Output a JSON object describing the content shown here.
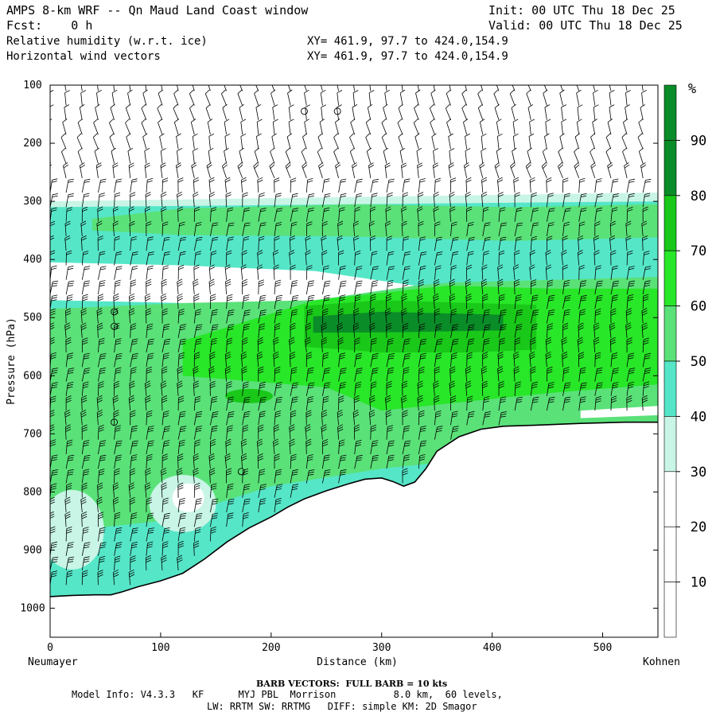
{
  "header": {
    "title": "AMPS 8-km WRF -- Qn Maud Land Coast window",
    "init": "Init: 00 UTC Thu 18 Dec 25",
    "fcst": "Fcst:    0 h",
    "valid": "Valid: 00 UTC Thu 18 Dec 25",
    "field1": "Relative humidity (w.r.t. ice)",
    "field2": "Horizontal wind vectors",
    "xy1": "XY= 461.9, 97.7 to 424.0,154.9",
    "xy2": "XY= 461.9, 97.7 to 424.0,154.9"
  },
  "footer": {
    "barb_note": "BARB VECTORS:  FULL BARB = 10 kts",
    "model_line1": "Model Info: V4.3.3   KF      MYJ PBL  Morrison          8.0 km,  60 levels,",
    "model_line2": "LW: RRTM SW: RRTMG   DIFF: simple KM: 2D Smagor"
  },
  "chart_data": {
    "type": "heatmap",
    "title": "Relative humidity (w.r.t. ice)",
    "xlabel": "Distance (km)",
    "ylabel": "Pressure (hPa)",
    "x_left_label": "Neumayer",
    "x_right_label": "Kohnen",
    "x_ticks": [
      0,
      100,
      200,
      300,
      400,
      500
    ],
    "x_range": [
      0,
      550
    ],
    "y_ticks": [
      100,
      200,
      300,
      400,
      500,
      600,
      700,
      800,
      900,
      1000
    ],
    "y_range": [
      100,
      1050
    ],
    "colorbar": {
      "unit": "%",
      "levels": [
        10,
        20,
        30,
        40,
        50,
        60,
        70,
        80,
        90
      ],
      "colors": [
        "#ffffff",
        "#ffffff",
        "#ffffff",
        "#c8f5e6",
        "#55e6c8",
        "#5ae178",
        "#28e628",
        "#19c819",
        "#0a8c28"
      ]
    },
    "terrain": {
      "x_km": [
        0,
        20,
        40,
        55,
        65,
        80,
        100,
        120,
        140,
        160,
        180,
        200,
        215,
        230,
        250,
        270,
        285,
        300,
        310,
        320,
        330,
        340,
        350,
        370,
        390,
        410,
        440,
        480,
        520,
        550
      ],
      "p_hpa": [
        980,
        978,
        977,
        977,
        972,
        963,
        953,
        940,
        915,
        886,
        862,
        843,
        826,
        812,
        798,
        786,
        778,
        776,
        782,
        790,
        783,
        760,
        730,
        705,
        692,
        687,
        685,
        682,
        680,
        680
      ]
    },
    "rh_regions": [
      {
        "name": "40-50",
        "x_km": [
          0,
          550
        ],
        "p_hpa": [
          300,
          980
        ]
      },
      {
        "name": "50-60 upper",
        "x_km": [
          35,
          550
        ],
        "p_hpa": [
          315,
          360
        ]
      },
      {
        "name": "50-60 mid",
        "x_km": [
          0,
          550
        ],
        "p_hpa": [
          390,
          770
        ]
      },
      {
        "name": "60-70",
        "x_km": [
          120,
          550
        ],
        "p_hpa": [
          430,
          620
        ]
      },
      {
        "name": "70-80",
        "x_km": [
          230,
          440
        ],
        "p_hpa": [
          470,
          560
        ]
      },
      {
        "name": "80-90",
        "x_km": [
          235,
          410
        ],
        "p_hpa": [
          490,
          525
        ]
      },
      {
        "name": "30-40 lower-left",
        "x_km": [
          0,
          40
        ],
        "p_hpa": [
          790,
          950
        ]
      },
      {
        "name": "30-40 mid-left",
        "x_km": [
          80,
          140
        ],
        "p_hpa": [
          770,
          860
        ]
      },
      {
        "name": "20-30 dry tongue",
        "x_km": [
          20,
          320
        ],
        "p_hpa": [
          400,
          480
        ]
      }
    ]
  }
}
